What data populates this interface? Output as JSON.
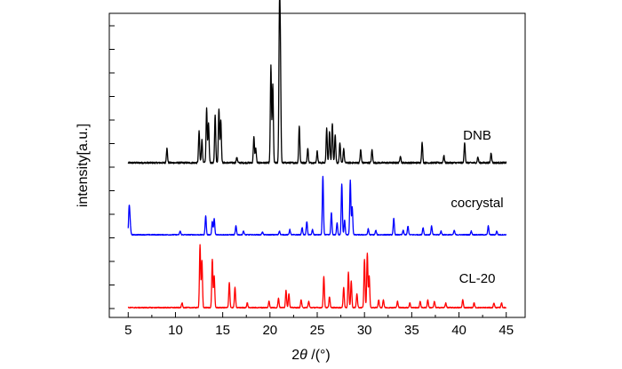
{
  "chart_data": {
    "type": "line",
    "xlabel_prefix": "2",
    "xlabel_var": "θ",
    "xlabel_suffix": " /(°)",
    "ylabel": "intensity[a.u.]",
    "xlim": [
      3,
      47
    ],
    "x_ticks": [
      5,
      10,
      15,
      20,
      25,
      30,
      35,
      40,
      45
    ],
    "x_range": [
      5,
      45
    ],
    "grid": false,
    "legend": "inline-labels",
    "series": [
      {
        "name": "DNB",
        "color": "#000000",
        "offset": 2.0,
        "peaks": [
          [
            9.1,
            0.1
          ],
          [
            12.5,
            0.22
          ],
          [
            12.8,
            0.16
          ],
          [
            13.3,
            0.38
          ],
          [
            13.5,
            0.28
          ],
          [
            14.2,
            0.34
          ],
          [
            14.6,
            0.38
          ],
          [
            14.8,
            0.3
          ],
          [
            16.5,
            0.04
          ],
          [
            18.3,
            0.18
          ],
          [
            18.5,
            0.1
          ],
          [
            20.1,
            0.68
          ],
          [
            20.3,
            0.55
          ],
          [
            21.0,
            0.95
          ],
          [
            21.1,
            0.7
          ],
          [
            23.1,
            0.26
          ],
          [
            24.0,
            0.1
          ],
          [
            25.0,
            0.08
          ],
          [
            26.0,
            0.24
          ],
          [
            26.3,
            0.22
          ],
          [
            26.6,
            0.28
          ],
          [
            26.9,
            0.2
          ],
          [
            27.4,
            0.14
          ],
          [
            27.8,
            0.1
          ],
          [
            29.6,
            0.09
          ],
          [
            30.8,
            0.09
          ],
          [
            33.8,
            0.05
          ],
          [
            36.1,
            0.14
          ],
          [
            38.4,
            0.05
          ],
          [
            40.6,
            0.14
          ],
          [
            42.0,
            0.04
          ],
          [
            43.4,
            0.07
          ]
        ]
      },
      {
        "name": "cocrystal",
        "color": "#0000ff",
        "offset": 1.0,
        "peaks": [
          [
            5.1,
            0.36
          ],
          [
            5.2,
            0.16
          ],
          [
            10.5,
            0.05
          ],
          [
            13.2,
            0.26
          ],
          [
            13.9,
            0.18
          ],
          [
            14.1,
            0.22
          ],
          [
            16.4,
            0.12
          ],
          [
            17.2,
            0.05
          ],
          [
            19.2,
            0.04
          ],
          [
            21.0,
            0.05
          ],
          [
            22.1,
            0.07
          ],
          [
            23.4,
            0.1
          ],
          [
            23.9,
            0.18
          ],
          [
            24.5,
            0.07
          ],
          [
            25.6,
            0.8
          ],
          [
            26.5,
            0.3
          ],
          [
            27.1,
            0.16
          ],
          [
            27.6,
            0.7
          ],
          [
            27.9,
            0.2
          ],
          [
            28.5,
            0.75
          ],
          [
            28.7,
            0.38
          ],
          [
            30.4,
            0.08
          ],
          [
            31.2,
            0.06
          ],
          [
            33.1,
            0.22
          ],
          [
            34.1,
            0.06
          ],
          [
            34.6,
            0.12
          ],
          [
            36.2,
            0.1
          ],
          [
            37.1,
            0.12
          ],
          [
            38.1,
            0.05
          ],
          [
            39.5,
            0.06
          ],
          [
            41.3,
            0.05
          ],
          [
            43.1,
            0.12
          ],
          [
            44.0,
            0.05
          ]
        ]
      },
      {
        "name": "CL-20",
        "color": "#ff0000",
        "offset": 0.0,
        "peaks": [
          [
            10.7,
            0.06
          ],
          [
            12.6,
            0.8
          ],
          [
            12.8,
            0.6
          ],
          [
            13.9,
            0.62
          ],
          [
            14.1,
            0.4
          ],
          [
            15.7,
            0.32
          ],
          [
            16.3,
            0.26
          ],
          [
            17.6,
            0.06
          ],
          [
            19.9,
            0.08
          ],
          [
            20.9,
            0.12
          ],
          [
            21.7,
            0.22
          ],
          [
            22.0,
            0.18
          ],
          [
            23.3,
            0.1
          ],
          [
            24.1,
            0.08
          ],
          [
            25.7,
            0.4
          ],
          [
            26.3,
            0.14
          ],
          [
            27.8,
            0.26
          ],
          [
            28.3,
            0.45
          ],
          [
            28.6,
            0.34
          ],
          [
            29.2,
            0.18
          ],
          [
            30.0,
            0.62
          ],
          [
            30.3,
            0.7
          ],
          [
            30.5,
            0.4
          ],
          [
            31.5,
            0.1
          ],
          [
            32.0,
            0.1
          ],
          [
            33.5,
            0.08
          ],
          [
            34.8,
            0.06
          ],
          [
            35.9,
            0.08
          ],
          [
            36.7,
            0.1
          ],
          [
            37.4,
            0.08
          ],
          [
            38.6,
            0.06
          ],
          [
            40.4,
            0.1
          ],
          [
            41.6,
            0.06
          ],
          [
            43.7,
            0.06
          ],
          [
            44.5,
            0.06
          ]
        ]
      }
    ]
  }
}
